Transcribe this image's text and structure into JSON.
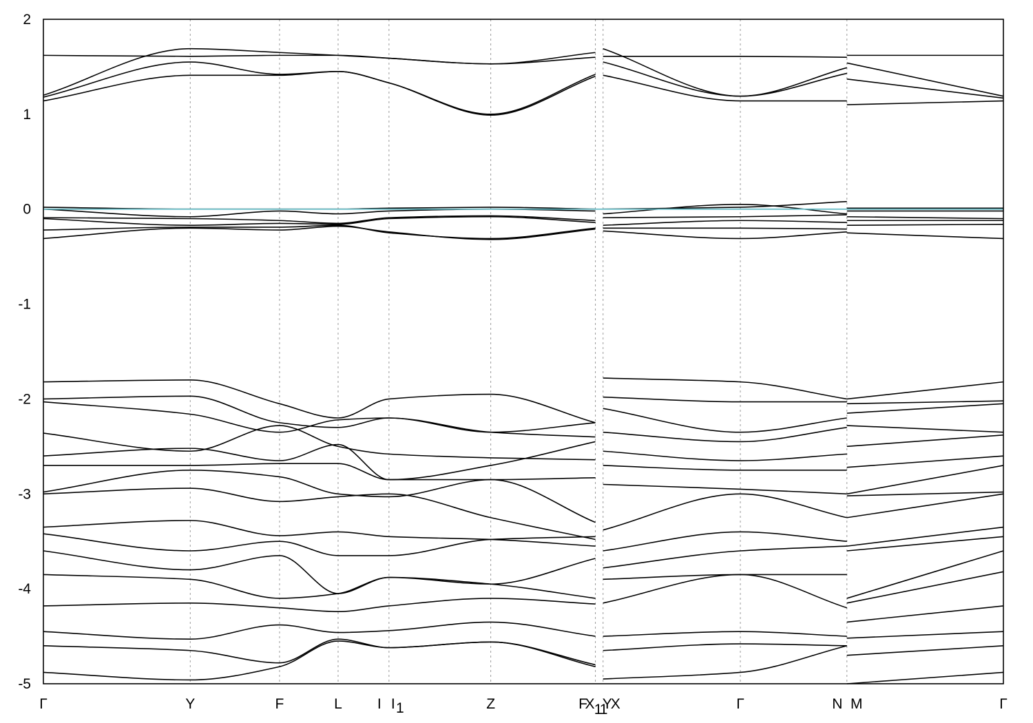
{
  "chart_data": {
    "type": "line",
    "title": "",
    "xlabel": "",
    "ylabel": "",
    "ylim": [
      -5,
      2
    ],
    "yticks": [
      "2",
      "1",
      "0",
      "-1",
      "-2",
      "-3",
      "-4",
      "-5"
    ],
    "y_tick_values": [
      2,
      1,
      0,
      -1,
      -2,
      -3,
      -4,
      -5
    ],
    "xlim": [
      0,
      10.0
    ],
    "kpoint_labels": [
      "Γ",
      "Y",
      "F",
      "L",
      "I",
      "I",
      "1",
      "Z",
      "F",
      "X",
      "1",
      "1",
      "Y",
      "X",
      "Γ",
      "N",
      "M",
      "Γ"
    ],
    "kpoint_positions": [
      0,
      1.53,
      2.46,
      3.07,
      3.6,
      3.6,
      3.6,
      4.66,
      5.75,
      5.75,
      5.75,
      5.75,
      5.83,
      5.83,
      7.26,
      8.37,
      8.37,
      10.0
    ],
    "grid_x": true,
    "fermi_level": 0.0,
    "fermi_color": "#5fb8c2",
    "line_color": "#000000",
    "series": [
      {
        "x": [
          0,
          1.53,
          2.46,
          3.07,
          3.6,
          4.66,
          5.75
        ],
        "values": [
          1.62,
          1.61,
          1.62,
          1.62,
          1.59,
          1.53,
          1.6
        ]
      },
      {
        "x": [
          0,
          1.53,
          2.46,
          3.07,
          3.6,
          4.66,
          5.75
        ],
        "values": [
          1.2,
          1.69,
          1.65,
          1.62,
          1.59,
          1.53,
          1.65
        ]
      },
      {
        "x": [
          0,
          1.53,
          2.46,
          3.07,
          3.6,
          4.66,
          5.75
        ],
        "values": [
          1.18,
          1.55,
          1.42,
          1.45,
          1.33,
          1.0,
          1.42
        ]
      },
      {
        "x": [
          0,
          1.53,
          2.46,
          3.07,
          3.6,
          4.66,
          5.75
        ],
        "values": [
          1.14,
          1.41,
          1.41,
          1.45,
          1.33,
          0.99,
          1.4
        ]
      },
      {
        "x": [
          5.83,
          7.26,
          8.37
        ],
        "values": [
          1.61,
          1.61,
          1.6
        ]
      },
      {
        "x": [
          5.83,
          7.26,
          8.37
        ],
        "values": [
          1.69,
          1.19,
          1.49
        ]
      },
      {
        "x": [
          5.83,
          7.26,
          8.37
        ],
        "values": [
          1.55,
          1.19,
          1.43
        ]
      },
      {
        "x": [
          5.83,
          7.26,
          8.37
        ],
        "values": [
          1.41,
          1.14,
          1.14
        ]
      },
      {
        "x": [
          8.37,
          10.0
        ],
        "values": [
          1.62,
          1.62
        ]
      },
      {
        "x": [
          8.37,
          10.0
        ],
        "values": [
          1.54,
          1.19
        ]
      },
      {
        "x": [
          8.37,
          10.0
        ],
        "values": [
          1.37,
          1.17
        ]
      },
      {
        "x": [
          8.37,
          10.0
        ],
        "values": [
          1.1,
          1.14
        ]
      },
      {
        "x": [
          0,
          1.53,
          2.46,
          3.07,
          3.6,
          4.66,
          5.75
        ],
        "values": [
          0.02,
          0.0,
          0.0,
          0.0,
          0.01,
          0.02,
          0.0
        ]
      },
      {
        "x": [
          0,
          1.53,
          2.46,
          3.07,
          3.6,
          4.66,
          5.75
        ],
        "values": [
          0.0,
          -0.08,
          -0.02,
          -0.05,
          -0.02,
          0.0,
          -0.02
        ]
      },
      {
        "x": [
          0,
          1.53,
          2.46,
          3.07,
          3.6,
          4.66,
          5.75
        ],
        "values": [
          -0.09,
          -0.1,
          -0.12,
          -0.15,
          -0.09,
          -0.07,
          -0.12
        ]
      },
      {
        "x": [
          0,
          1.53,
          2.46,
          3.07,
          3.6,
          4.66,
          5.75
        ],
        "values": [
          -0.1,
          -0.17,
          -0.15,
          -0.16,
          -0.1,
          -0.08,
          -0.14
        ]
      },
      {
        "x": [
          0,
          1.53,
          2.46,
          3.07,
          3.6,
          4.66,
          5.75
        ],
        "values": [
          -0.22,
          -0.19,
          -0.19,
          -0.17,
          -0.25,
          -0.31,
          -0.2
        ]
      },
      {
        "x": [
          0,
          1.53,
          2.46,
          3.07,
          3.6,
          4.66,
          5.75
        ],
        "values": [
          -0.31,
          -0.2,
          -0.22,
          -0.18,
          -0.24,
          -0.32,
          -0.21
        ]
      },
      {
        "x": [
          5.83,
          7.26,
          8.37
        ],
        "values": [
          0.0,
          0.02,
          0.08
        ]
      },
      {
        "x": [
          5.83,
          7.26,
          8.37
        ],
        "values": [
          -0.05,
          0.05,
          -0.05
        ]
      },
      {
        "x": [
          5.83,
          7.26,
          8.37
        ],
        "values": [
          -0.09,
          -0.08,
          -0.06
        ]
      },
      {
        "x": [
          5.83,
          7.26,
          8.37
        ],
        "values": [
          -0.17,
          -0.12,
          -0.14
        ]
      },
      {
        "x": [
          5.83,
          7.26,
          8.37
        ],
        "values": [
          -0.2,
          -0.2,
          -0.21
        ]
      },
      {
        "x": [
          5.83,
          7.26,
          8.37
        ],
        "values": [
          -0.23,
          -0.31,
          -0.24
        ]
      },
      {
        "x": [
          8.37,
          10.0
        ],
        "values": [
          0.01,
          0.01
        ]
      },
      {
        "x": [
          8.37,
          10.0
        ],
        "values": [
          -0.02,
          -0.02
        ]
      },
      {
        "x": [
          8.37,
          10.0
        ],
        "values": [
          -0.08,
          -0.1
        ]
      },
      {
        "x": [
          8.37,
          10.0
        ],
        "values": [
          -0.12,
          -0.12
        ]
      },
      {
        "x": [
          8.37,
          10.0
        ],
        "values": [
          -0.17,
          -0.16
        ]
      },
      {
        "x": [
          8.37,
          10.0
        ],
        "values": [
          -0.25,
          -0.31
        ]
      },
      {
        "x": [
          0,
          1.53,
          2.46,
          3.07,
          3.6,
          4.66,
          5.75
        ],
        "values": [
          -1.82,
          -1.8,
          -2.05,
          -2.2,
          -2.0,
          -1.95,
          -2.25
        ]
      },
      {
        "x": [
          0,
          1.53,
          2.46,
          3.07,
          3.6,
          4.66,
          5.75
        ],
        "values": [
          -2.0,
          -1.97,
          -2.25,
          -2.3,
          -2.2,
          -2.35,
          -2.25
        ]
      },
      {
        "x": [
          0,
          1.53,
          2.46,
          3.07,
          3.6,
          4.66,
          5.75
        ],
        "values": [
          -2.03,
          -2.16,
          -2.35,
          -2.22,
          -2.2,
          -2.35,
          -2.4
        ]
      },
      {
        "x": [
          0,
          1.53,
          2.46,
          3.07,
          3.6,
          4.66,
          5.75
        ],
        "values": [
          -2.36,
          -2.55,
          -2.28,
          -2.5,
          -2.58,
          -2.62,
          -2.64
        ]
      },
      {
        "x": [
          0,
          1.53,
          2.46,
          3.07,
          3.6,
          4.66,
          5.75
        ],
        "values": [
          -2.6,
          -2.52,
          -2.65,
          -2.48,
          -2.85,
          -2.7,
          -2.45
        ]
      },
      {
        "x": [
          0,
          1.53,
          2.46,
          3.07,
          3.6,
          4.66,
          5.75
        ],
        "values": [
          -2.7,
          -2.7,
          -2.68,
          -2.68,
          -2.85,
          -2.85,
          -2.83
        ]
      },
      {
        "x": [
          0,
          1.53,
          2.46,
          3.07,
          3.6,
          4.66,
          5.75
        ],
        "values": [
          -2.98,
          -2.75,
          -2.82,
          -3.0,
          -3.03,
          -2.85,
          -3.3
        ]
      },
      {
        "x": [
          0,
          1.53,
          2.46,
          3.07,
          3.6,
          4.66,
          5.75
        ],
        "values": [
          -3.0,
          -2.94,
          -3.08,
          -3.03,
          -3.0,
          -3.25,
          -3.48
        ]
      },
      {
        "x": [
          0,
          1.53,
          2.46,
          3.07,
          3.6,
          4.66,
          5.75
        ],
        "values": [
          -3.35,
          -3.28,
          -3.44,
          -3.4,
          -3.45,
          -3.48,
          -3.55
        ]
      },
      {
        "x": [
          0,
          1.53,
          2.46,
          3.07,
          3.6,
          4.66,
          5.75
        ],
        "values": [
          -3.42,
          -3.6,
          -3.5,
          -3.65,
          -3.65,
          -3.48,
          -3.45
        ]
      },
      {
        "x": [
          0,
          1.53,
          2.46,
          3.07,
          3.6,
          4.66,
          5.75
        ],
        "values": [
          -3.6,
          -3.8,
          -3.65,
          -4.05,
          -3.88,
          -3.95,
          -3.68
        ]
      },
      {
        "x": [
          0,
          1.53,
          2.46,
          3.07,
          3.6,
          4.66,
          5.75
        ],
        "values": [
          -3.85,
          -3.9,
          -4.1,
          -4.05,
          -3.88,
          -3.95,
          -4.1
        ]
      },
      {
        "x": [
          0,
          1.53,
          2.46,
          3.07,
          3.6,
          4.66,
          5.75
        ],
        "values": [
          -4.18,
          -4.15,
          -4.2,
          -4.24,
          -4.18,
          -4.1,
          -4.16
        ]
      },
      {
        "x": [
          0,
          1.53,
          2.46,
          3.07,
          3.6,
          4.66,
          5.75
        ],
        "values": [
          -4.45,
          -4.53,
          -4.38,
          -4.46,
          -4.44,
          -4.35,
          -4.5
        ]
      },
      {
        "x": [
          0,
          1.53,
          2.46,
          3.07,
          3.6,
          4.66,
          5.75
        ],
        "values": [
          -4.6,
          -4.65,
          -4.78,
          -4.53,
          -4.62,
          -4.56,
          -4.8
        ]
      },
      {
        "x": [
          0,
          1.53,
          2.46,
          3.07,
          3.6,
          4.66,
          5.75
        ],
        "values": [
          -4.88,
          -4.96,
          -4.82,
          -4.55,
          -4.62,
          -4.56,
          -4.82
        ]
      },
      {
        "x": [
          5.83,
          7.26,
          8.37
        ],
        "values": [
          -1.78,
          -1.82,
          -2.0
        ]
      },
      {
        "x": [
          5.83,
          7.26,
          8.37
        ],
        "values": [
          -1.98,
          -2.03,
          -2.03
        ]
      },
      {
        "x": [
          5.83,
          7.26,
          8.37
        ],
        "values": [
          -2.1,
          -2.35,
          -2.2
        ]
      },
      {
        "x": [
          5.83,
          7.26,
          8.37
        ],
        "values": [
          -2.35,
          -2.45,
          -2.3
        ]
      },
      {
        "x": [
          5.83,
          7.26,
          8.37
        ],
        "values": [
          -2.55,
          -2.65,
          -2.58
        ]
      },
      {
        "x": [
          5.83,
          7.26,
          8.37
        ],
        "values": [
          -2.7,
          -2.75,
          -2.75
        ]
      },
      {
        "x": [
          5.83,
          7.26,
          8.37
        ],
        "values": [
          -2.9,
          -2.95,
          -3.0
        ]
      },
      {
        "x": [
          5.83,
          7.26,
          8.37
        ],
        "values": [
          -3.38,
          -3.0,
          -3.25
        ]
      },
      {
        "x": [
          5.83,
          7.26,
          8.37
        ],
        "values": [
          -3.6,
          -3.4,
          -3.5
        ]
      },
      {
        "x": [
          5.83,
          7.26,
          8.37
        ],
        "values": [
          -3.78,
          -3.6,
          -3.55
        ]
      },
      {
        "x": [
          5.83,
          7.26,
          8.37
        ],
        "values": [
          -3.9,
          -3.85,
          -3.85
        ]
      },
      {
        "x": [
          5.83,
          7.26,
          8.37
        ],
        "values": [
          -4.15,
          -3.85,
          -4.2
        ]
      },
      {
        "x": [
          5.83,
          7.26,
          8.37
        ],
        "values": [
          -4.5,
          -4.45,
          -4.5
        ]
      },
      {
        "x": [
          5.83,
          7.26,
          8.37
        ],
        "values": [
          -4.65,
          -4.58,
          -4.6
        ]
      },
      {
        "x": [
          5.83,
          7.26,
          8.37
        ],
        "values": [
          -4.95,
          -4.88,
          -4.6
        ]
      },
      {
        "x": [
          8.37,
          10.0
        ],
        "values": [
          -2.0,
          -1.82
        ]
      },
      {
        "x": [
          8.37,
          10.0
        ],
        "values": [
          -2.05,
          -2.02
        ]
      },
      {
        "x": [
          8.37,
          10.0
        ],
        "values": [
          -2.15,
          -2.05
        ]
      },
      {
        "x": [
          8.37,
          10.0
        ],
        "values": [
          -2.28,
          -2.35
        ]
      },
      {
        "x": [
          8.37,
          10.0
        ],
        "values": [
          -2.5,
          -2.38
        ]
      },
      {
        "x": [
          8.37,
          10.0
        ],
        "values": [
          -2.72,
          -2.6
        ]
      },
      {
        "x": [
          8.37,
          10.0
        ],
        "values": [
          -3.0,
          -2.7
        ]
      },
      {
        "x": [
          8.37,
          10.0
        ],
        "values": [
          -3.02,
          -2.98
        ]
      },
      {
        "x": [
          8.37,
          10.0
        ],
        "values": [
          -3.25,
          -3.0
        ]
      },
      {
        "x": [
          8.37,
          10.0
        ],
        "values": [
          -3.55,
          -3.35
        ]
      },
      {
        "x": [
          8.37,
          10.0
        ],
        "values": [
          -3.6,
          -3.45
        ]
      },
      {
        "x": [
          8.37,
          10.0
        ],
        "values": [
          -4.1,
          -3.6
        ]
      },
      {
        "x": [
          8.37,
          10.0
        ],
        "values": [
          -4.15,
          -3.82
        ]
      },
      {
        "x": [
          8.37,
          10.0
        ],
        "values": [
          -4.35,
          -4.18
        ]
      },
      {
        "x": [
          8.37,
          10.0
        ],
        "values": [
          -4.52,
          -4.45
        ]
      },
      {
        "x": [
          8.37,
          10.0
        ],
        "values": [
          -4.7,
          -4.6
        ]
      },
      {
        "x": [
          8.37,
          10.0
        ],
        "values": [
          -5.0,
          -4.88
        ]
      }
    ]
  }
}
